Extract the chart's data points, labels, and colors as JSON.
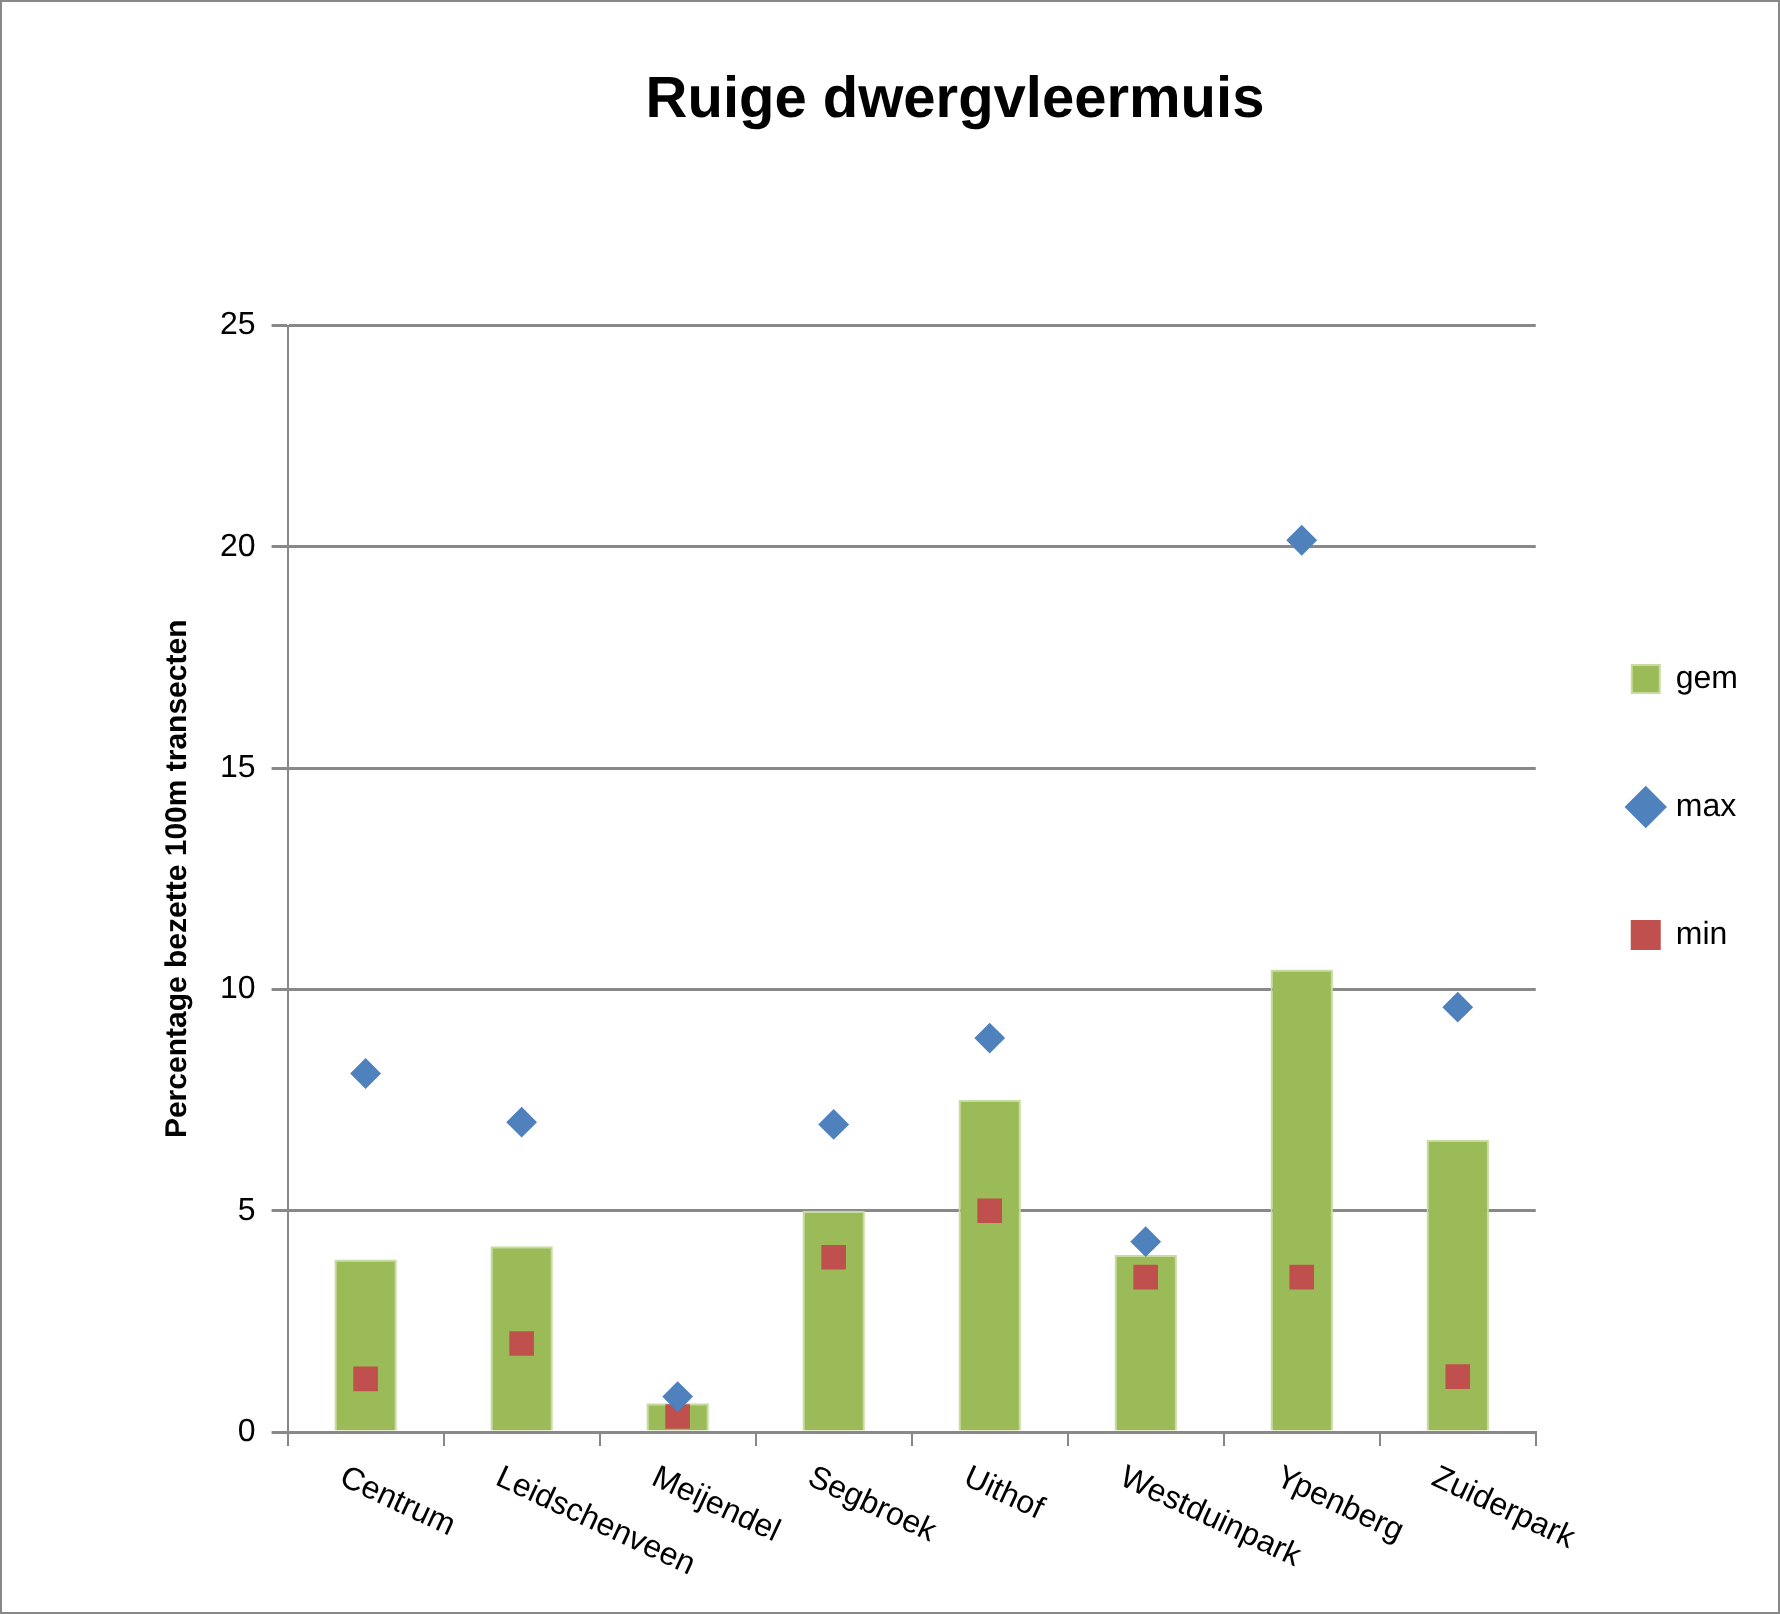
{
  "chart_data": {
    "type": "bar",
    "title": "Ruige dwergvleermuis",
    "ylabel": "Percentage bezette 100m transecten",
    "categories": [
      "Centrum",
      "Leidschenveen",
      "Meijendel",
      "Segbroek",
      "Uithof",
      "Westduinpark",
      "Ypenberg",
      "Zuiderpark"
    ],
    "series": [
      {
        "name": "gem",
        "color": "#9bbb59",
        "values": [
          3.9,
          4.2,
          0.65,
          5.0,
          7.5,
          4.0,
          10.45,
          6.6
        ]
      },
      {
        "name": "max",
        "type": "scatter",
        "marker": "diamond",
        "color": "#4f81bd",
        "x": [
          "Centrum",
          "Leidschenveen",
          "Meijendel",
          "Segbroek",
          "Uithof",
          "Westduinpark",
          "Ypenberg",
          "Zuiderpark"
        ],
        "values": [
          8.1,
          7.0,
          0.8,
          6.95,
          8.9,
          4.3,
          20.15,
          9.6
        ]
      },
      {
        "name": "min",
        "type": "scatter",
        "marker": "square",
        "color": "#c0504d",
        "x": [
          "Centrum",
          "Leidschenveen",
          "Meijendel",
          "Segbroek",
          "Uithof",
          "Westduinpark",
          "Ypenberg",
          "Zuiderpark"
        ],
        "values": [
          1.2,
          2.0,
          0.35,
          3.95,
          5.0,
          3.5,
          3.5,
          1.25
        ]
      }
    ],
    "ylim": [
      0,
      25
    ],
    "yticks": [
      0,
      5,
      10,
      15,
      20,
      25
    ],
    "grid": "y",
    "legend": "right"
  }
}
